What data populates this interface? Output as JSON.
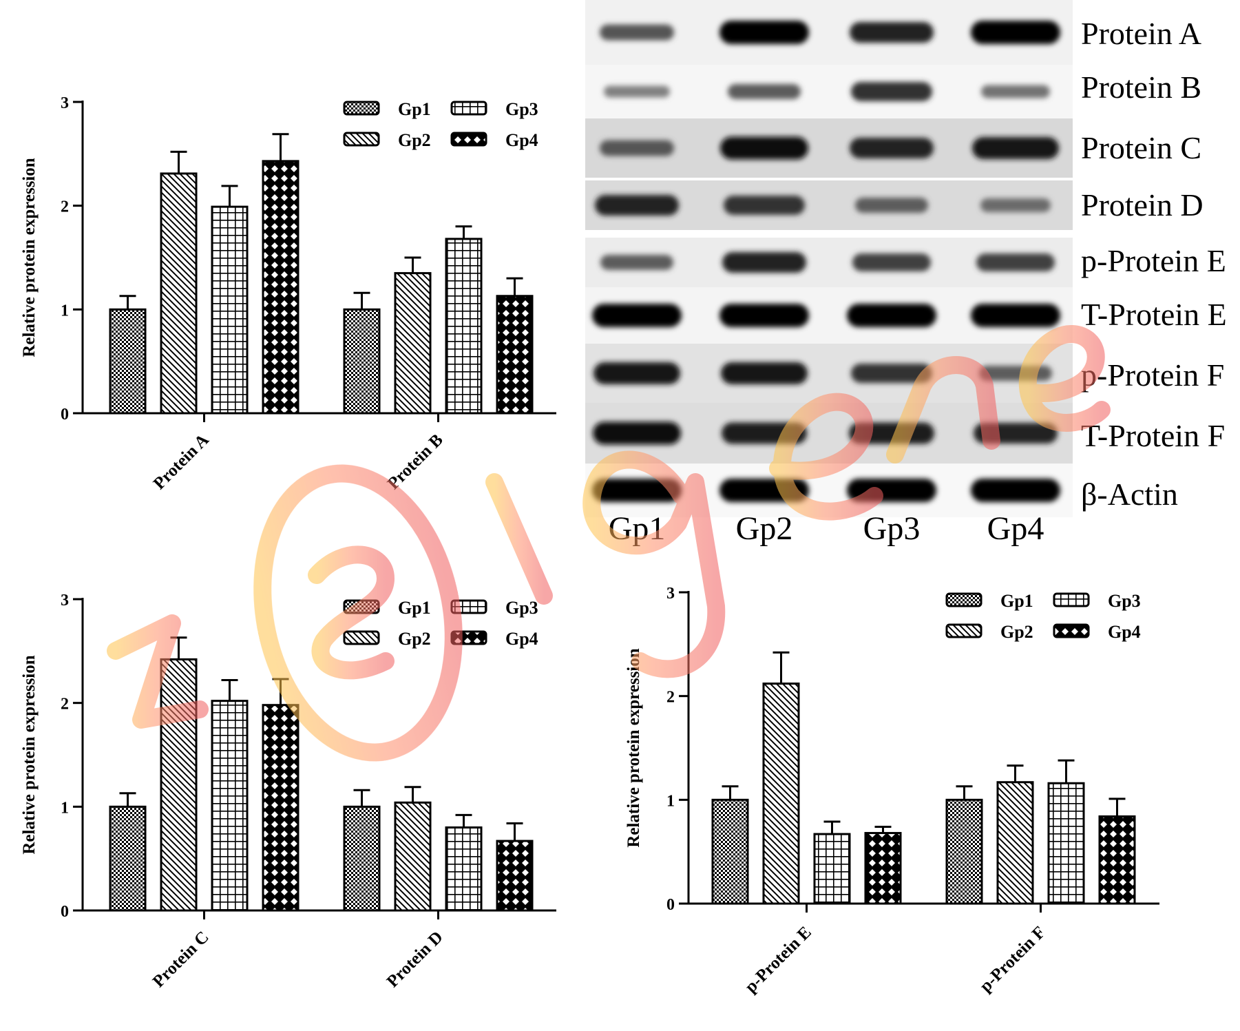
{
  "chart_data": [
    {
      "type": "bar",
      "categories": [
        "Protein A",
        "Protein B"
      ],
      "series": [
        {
          "name": "Gp1",
          "values": [
            1.0,
            1.0
          ],
          "errors": [
            0.13,
            0.16
          ]
        },
        {
          "name": "Gp2",
          "values": [
            2.31,
            1.35
          ],
          "errors": [
            0.21,
            0.15
          ]
        },
        {
          "name": "Gp3",
          "values": [
            1.99,
            1.68
          ],
          "errors": [
            0.2,
            0.12
          ]
        },
        {
          "name": "Gp4",
          "values": [
            2.43,
            1.13
          ],
          "errors": [
            0.26,
            0.17
          ]
        }
      ],
      "ylabel": "Relative protein expression",
      "ylim": [
        0,
        3
      ],
      "yticks": [
        "0",
        "1",
        "2",
        "3"
      ],
      "legend": "top-right"
    },
    {
      "type": "bar",
      "categories": [
        "Protein C",
        "Protein D"
      ],
      "series": [
        {
          "name": "Gp1",
          "values": [
            1.0,
            1.0
          ],
          "errors": [
            0.13,
            0.16
          ]
        },
        {
          "name": "Gp2",
          "values": [
            2.42,
            1.04
          ],
          "errors": [
            0.21,
            0.15
          ]
        },
        {
          "name": "Gp3",
          "values": [
            2.02,
            0.8
          ],
          "errors": [
            0.2,
            0.12
          ]
        },
        {
          "name": "Gp4",
          "values": [
            1.98,
            0.67
          ],
          "errors": [
            0.25,
            0.17
          ]
        }
      ],
      "ylabel": "Relative protein expression",
      "ylim": [
        0,
        3
      ],
      "yticks": [
        "0",
        "1",
        "2",
        "3"
      ],
      "legend": "top-right"
    },
    {
      "type": "bar",
      "categories": [
        "p-Protein E",
        "p-Protein F"
      ],
      "series": [
        {
          "name": "Gp1",
          "values": [
            1.0,
            1.0
          ],
          "errors": [
            0.13,
            0.13
          ]
        },
        {
          "name": "Gp2",
          "values": [
            2.12,
            1.17
          ],
          "errors": [
            0.3,
            0.16
          ]
        },
        {
          "name": "Gp3",
          "values": [
            0.67,
            1.16
          ],
          "errors": [
            0.12,
            0.22
          ]
        },
        {
          "name": "Gp4",
          "values": [
            0.68,
            0.84
          ],
          "errors": [
            0.06,
            0.17
          ]
        }
      ],
      "ylabel": "Relative protein expression",
      "ylim": [
        0,
        3
      ],
      "yticks": [
        "0",
        "1",
        "2",
        "3"
      ],
      "legend": "top-right"
    }
  ],
  "blot": {
    "rows": [
      "Protein A",
      "Protein B",
      "Protein C",
      "Protein D",
      "p-Protein E",
      "T-Protein E",
      "p-Protein F",
      "T-Protein F",
      "β-Actin"
    ],
    "lanes": [
      "Gp1",
      "Gp2",
      "Gp3",
      "Gp4"
    ],
    "band_intensity": [
      [
        0.45,
        1.0,
        0.8,
        1.0
      ],
      [
        0.15,
        0.4,
        0.7,
        0.25
      ],
      [
        0.45,
        0.95,
        0.8,
        0.9
      ],
      [
        0.8,
        0.7,
        0.4,
        0.3
      ],
      [
        0.4,
        0.8,
        0.6,
        0.6
      ],
      [
        1.0,
        1.0,
        1.0,
        1.0
      ],
      [
        0.9,
        0.9,
        0.7,
        0.4
      ],
      [
        0.95,
        0.85,
        0.85,
        0.8
      ],
      [
        1.0,
        1.0,
        1.0,
        1.0
      ]
    ]
  },
  "watermark": {
    "text": "zoigene"
  }
}
